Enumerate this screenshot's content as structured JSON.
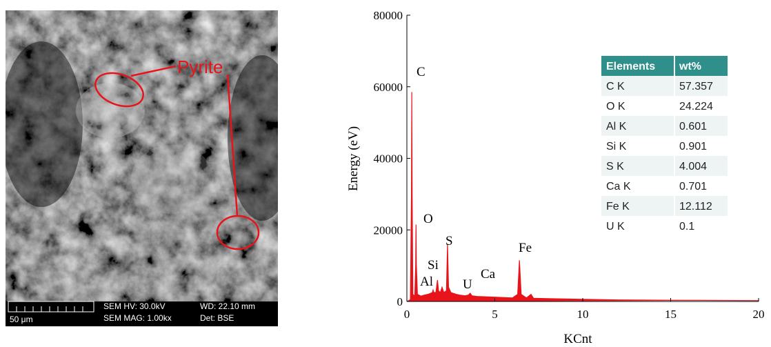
{
  "image": {
    "label": "Pyrite",
    "scale": "50 μm",
    "info": [
      "SEM HV: 30.0kV",
      "WD: 22.10 mm",
      "SEM MAG: 1.00kx",
      "Det: BSE"
    ]
  },
  "chart_data": {
    "type": "line",
    "x_label": "KCnt",
    "y_label": "Energy (eV)",
    "x": [
      0,
      0.2,
      0.26,
      0.28,
      0.3,
      0.34,
      0.45,
      0.5,
      0.52,
      0.54,
      0.6,
      0.8,
      1.0,
      1.2,
      1.45,
      1.49,
      1.53,
      1.65,
      1.74,
      1.8,
      1.9,
      2.0,
      2.1,
      2.25,
      2.31,
      2.37,
      2.5,
      2.8,
      3.0,
      3.3,
      3.5,
      3.6,
      3.7,
      4.0,
      5.0,
      6.0,
      6.3,
      6.4,
      6.5,
      6.8,
      7.06,
      7.2,
      8.0,
      10.0,
      12.0,
      15.0,
      20.0
    ],
    "series": [
      {
        "color": "#e8141b",
        "values": [
          0,
          500,
          30000,
          58500,
          30000,
          2000,
          1500,
          10000,
          21500,
          10000,
          2000,
          1500,
          1800,
          2000,
          2500,
          3200,
          2500,
          2500,
          6000,
          3000,
          2500,
          4000,
          2500,
          3000,
          16000,
          4000,
          2500,
          2000,
          1800,
          1600,
          1800,
          2300,
          1600,
          1400,
          1200,
          1000,
          2000,
          11500,
          2000,
          1000,
          2000,
          900,
          800,
          600,
          450,
          350,
          250
        ]
      }
    ],
    "annotations": [
      "C",
      "O",
      "Al",
      "Si",
      "S",
      "U",
      "Ca",
      "Fe"
    ],
    "xlim": [
      0,
      20
    ],
    "xticks": [
      0,
      5,
      10,
      15,
      20
    ],
    "ylim": [
      0,
      80000
    ],
    "yticks": [
      0,
      20000,
      40000,
      60000,
      80000
    ]
  },
  "table": {
    "header": [
      "Elements",
      "wt%"
    ],
    "rows": [
      [
        "C K",
        "57.357"
      ],
      [
        "O K",
        "24.224"
      ],
      [
        "Al K",
        "0.601"
      ],
      [
        "Si K",
        "0.901"
      ],
      [
        "S K",
        "4.004"
      ],
      [
        "Ca K",
        "0.701"
      ],
      [
        "Fe K",
        "12.112"
      ],
      [
        "U K",
        "0.1"
      ]
    ]
  }
}
